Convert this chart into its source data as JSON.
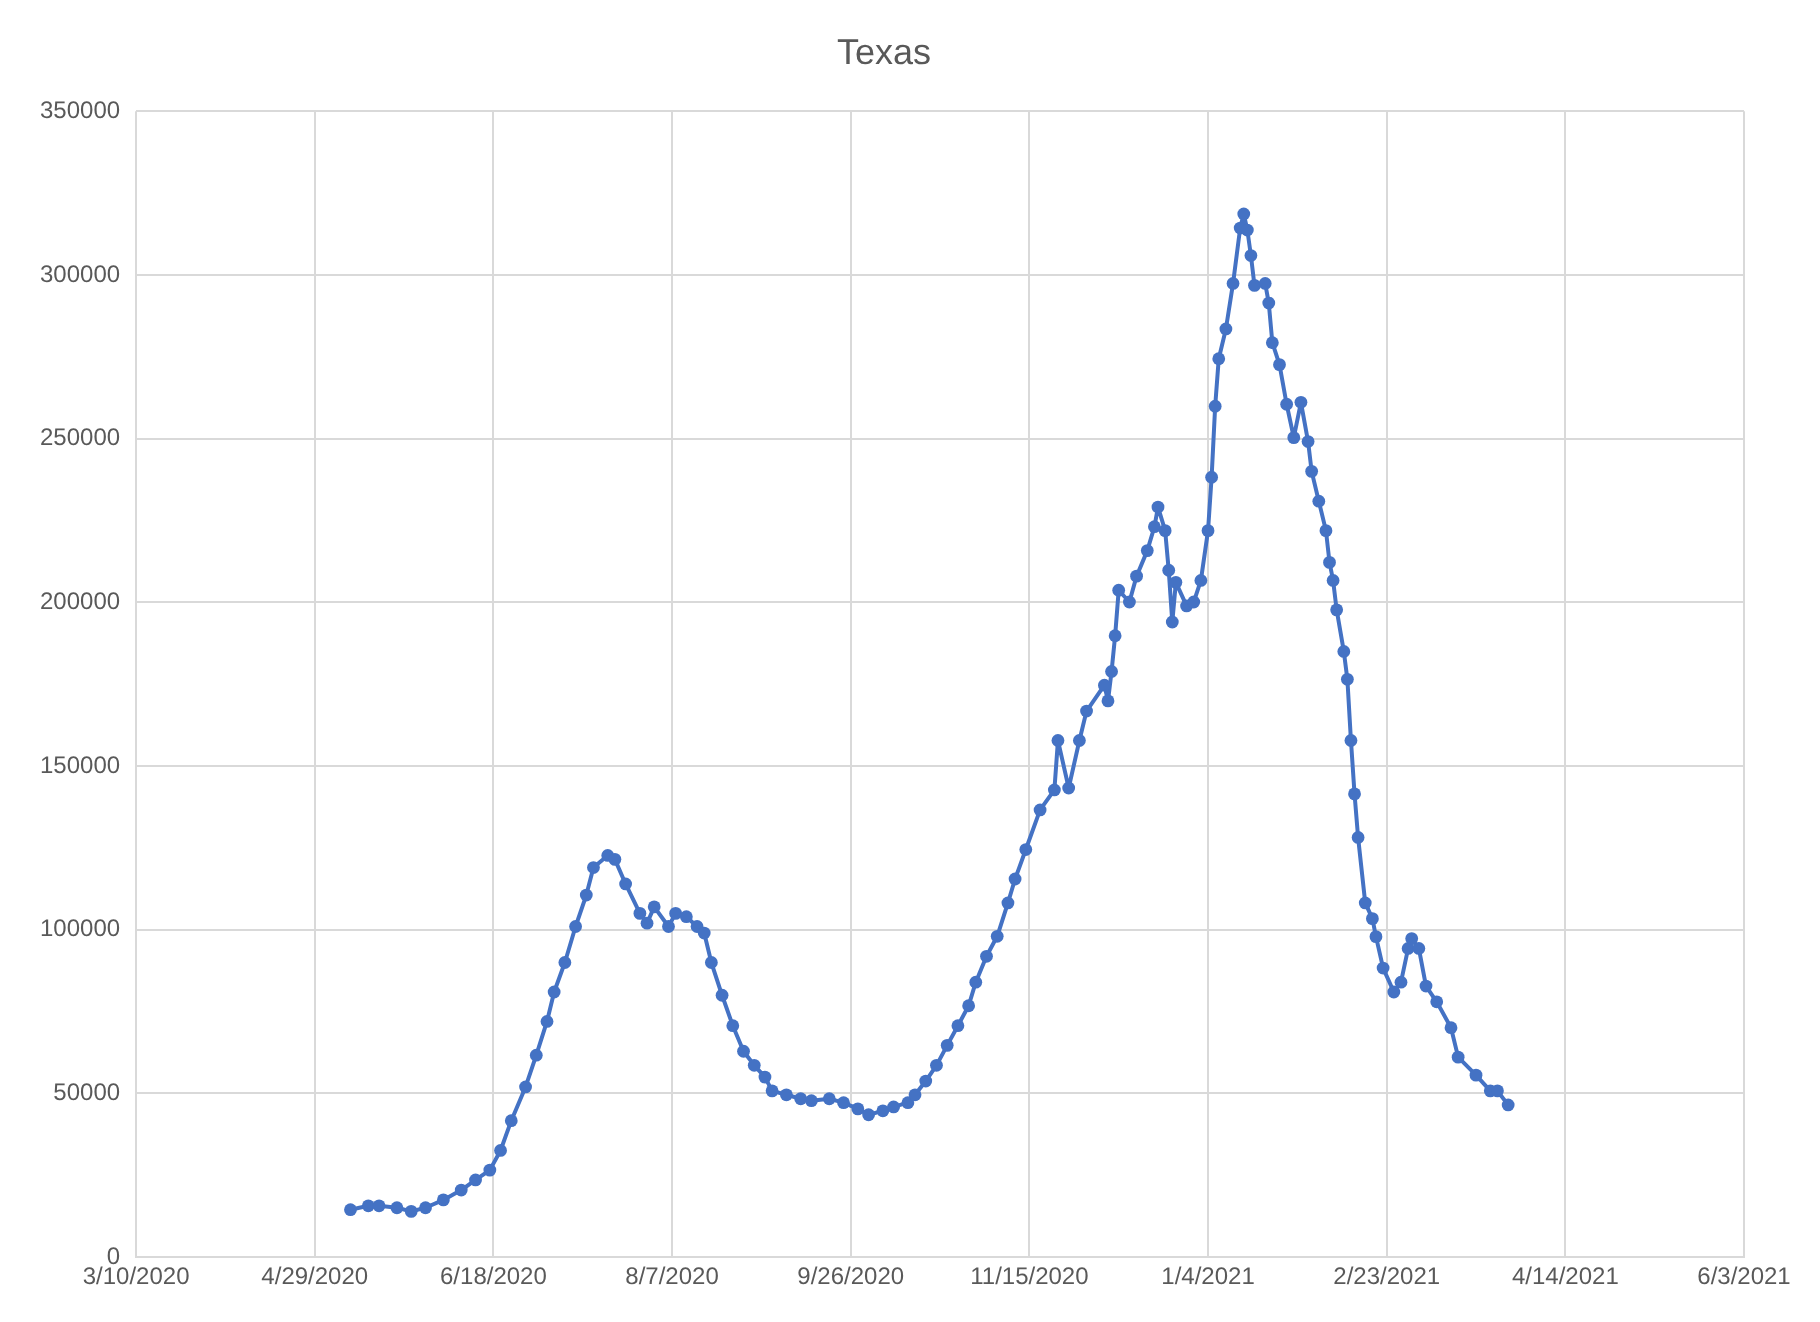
{
  "chart_data": {
    "type": "line",
    "title": "Texas",
    "x": [
      "2020-05-09",
      "2020-05-14",
      "2020-05-17",
      "2020-05-22",
      "2020-05-26",
      "2020-05-30",
      "2020-06-04",
      "2020-06-09",
      "2020-06-13",
      "2020-06-17",
      "2020-06-20",
      "2020-06-23",
      "2020-06-27",
      "2020-06-30",
      "2020-07-03",
      "2020-07-05",
      "2020-07-08",
      "2020-07-11",
      "2020-07-14",
      "2020-07-16",
      "2020-07-20",
      "2020-07-22",
      "2020-07-25",
      "2020-07-29",
      "2020-07-31",
      "2020-08-02",
      "2020-08-06",
      "2020-08-08",
      "2020-08-11",
      "2020-08-14",
      "2020-08-16",
      "2020-08-18",
      "2020-08-21",
      "2020-08-24",
      "2020-08-27",
      "2020-08-30",
      "2020-09-02",
      "2020-09-04",
      "2020-09-08",
      "2020-09-12",
      "2020-09-15",
      "2020-09-20",
      "2020-09-24",
      "2020-09-28",
      "2020-10-01",
      "2020-10-05",
      "2020-10-08",
      "2020-10-12",
      "2020-10-14",
      "2020-10-17",
      "2020-10-20",
      "2020-10-23",
      "2020-10-26",
      "2020-10-29",
      "2020-10-31",
      "2020-11-03",
      "2020-11-06",
      "2020-11-09",
      "2020-11-11",
      "2020-11-14",
      "2020-11-18",
      "2020-11-22",
      "2020-11-23",
      "2020-11-26",
      "2020-11-29",
      "2020-12-01",
      "2020-12-06",
      "2020-12-07",
      "2020-12-08",
      "2020-12-09",
      "2020-12-10",
      "2020-12-13",
      "2020-12-15",
      "2020-12-18",
      "2020-12-20",
      "2020-12-21",
      "2020-12-23",
      "2020-12-24",
      "2020-12-25",
      "2020-12-26",
      "2020-12-29",
      "2020-12-31",
      "2021-01-02",
      "2021-01-04",
      "2021-01-05",
      "2021-01-06",
      "2021-01-07",
      "2021-01-09",
      "2021-01-11",
      "2021-01-13",
      "2021-01-14",
      "2021-01-15",
      "2021-01-16",
      "2021-01-17",
      "2021-01-20",
      "2021-01-21",
      "2021-01-22",
      "2021-01-24",
      "2021-01-26",
      "2021-01-28",
      "2021-01-30",
      "2021-02-01",
      "2021-02-02",
      "2021-02-04",
      "2021-02-06",
      "2021-02-07",
      "2021-02-08",
      "2021-02-09",
      "2021-02-11",
      "2021-02-12",
      "2021-02-13",
      "2021-02-14",
      "2021-02-15",
      "2021-02-17",
      "2021-02-19",
      "2021-02-20",
      "2021-02-22",
      "2021-02-25",
      "2021-02-27",
      "2021-03-01",
      "2021-03-02",
      "2021-03-04",
      "2021-03-06",
      "2021-03-09",
      "2021-03-13",
      "2021-03-15",
      "2021-03-20",
      "2021-03-24",
      "2021-03-26",
      "2021-03-29"
    ],
    "series": [
      {
        "color": "#4472c4",
        "values": [
          14500,
          15700,
          15700,
          15100,
          14000,
          15100,
          17500,
          20500,
          23600,
          26600,
          32600,
          41700,
          52000,
          61700,
          72000,
          81000,
          90000,
          101000,
          110600,
          119000,
          122700,
          121500,
          114000,
          105000,
          102000,
          107000,
          101000,
          105000,
          104000,
          101000,
          99000,
          90000,
          80000,
          70700,
          62900,
          58600,
          55000,
          50800,
          49600,
          48400,
          47800,
          48400,
          47200,
          45300,
          43500,
          44700,
          45900,
          47200,
          49600,
          53800,
          58600,
          64700,
          70700,
          76800,
          84000,
          91900,
          98000,
          108200,
          115500,
          124500,
          136600,
          142700,
          157800,
          143300,
          157800,
          166800,
          174700,
          169900,
          178900,
          189800,
          203700,
          200100,
          208000,
          215800,
          223100,
          229100,
          221900,
          209800,
          194000,
          206100,
          198900,
          200100,
          206700,
          221900,
          238200,
          259900,
          274400,
          283500,
          297400,
          314300,
          318600,
          313700,
          305900,
          296800,
          297400,
          291400,
          279300,
          272600,
          260500,
          250300,
          261100,
          249100,
          240000,
          230900,
          221900,
          212200,
          206700,
          197700,
          185000,
          176500,
          157800,
          141500,
          128200,
          108200,
          103400,
          97900,
          88300,
          81000,
          84000,
          94300,
          97300,
          94300,
          82800,
          78000,
          70100,
          61100,
          55600,
          50800,
          50800,
          46500
        ]
      }
    ],
    "xlim": [
      "2020-03-10",
      "2021-06-03"
    ],
    "xticks": [
      {
        "value": "2020-03-10",
        "label": "3/10/2020"
      },
      {
        "value": "2020-04-29",
        "label": "4/29/2020"
      },
      {
        "value": "2020-06-18",
        "label": "6/18/2020"
      },
      {
        "value": "2020-08-07",
        "label": "8/7/2020"
      },
      {
        "value": "2020-09-26",
        "label": "9/26/2020"
      },
      {
        "value": "2020-11-15",
        "label": "11/15/2020"
      },
      {
        "value": "2021-01-04",
        "label": "1/4/2021"
      },
      {
        "value": "2021-02-23",
        "label": "2/23/2021"
      },
      {
        "value": "2021-04-14",
        "label": "4/14/2021"
      },
      {
        "value": "2021-06-03",
        "label": "6/3/2021"
      }
    ],
    "ylim": [
      0,
      350000
    ],
    "yticks": [
      0,
      50000,
      100000,
      150000,
      200000,
      250000,
      300000,
      350000
    ],
    "grid": true,
    "legend": false,
    "marker": "circle",
    "line_style": "solid"
  }
}
